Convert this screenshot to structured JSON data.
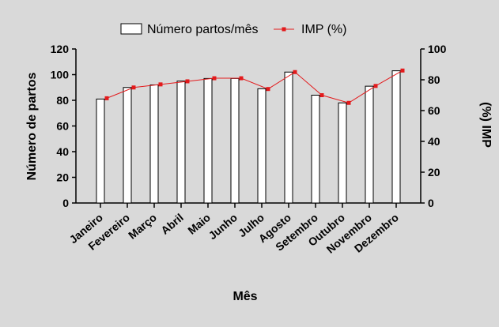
{
  "chart_data": {
    "type": "bar",
    "xlabel": "Mês",
    "categories": [
      "Janeiro",
      "Fevereiro",
      "Março",
      "Abril",
      "Maio",
      "Junho",
      "Julho",
      "Agosto",
      "Setembro",
      "Outubro",
      "Novembro",
      "Dezembro"
    ],
    "series": [
      {
        "name": "Número partos/mês",
        "type": "bar",
        "axis": "left",
        "color": "#ffffff",
        "values": [
          81,
          90,
          92,
          95,
          97,
          97,
          89,
          102,
          84,
          78,
          91,
          103
        ]
      },
      {
        "name": "IMP (%)",
        "type": "line",
        "axis": "right",
        "color": "#e31a1c",
        "values": [
          68,
          75,
          77,
          79,
          81,
          81,
          74,
          85,
          70,
          65,
          76,
          86
        ]
      }
    ],
    "y_left": {
      "label": "Número de partos",
      "ylim": [
        0,
        120
      ],
      "ticks": [
        "0",
        "20",
        "40",
        "60",
        "80",
        "100",
        "120"
      ]
    },
    "y_right": {
      "label": "(%) IMP",
      "ylim": [
        0,
        100
      ],
      "ticks": [
        "0",
        "20",
        "40",
        "60",
        "80",
        "100"
      ]
    },
    "legend_position": "top",
    "grid": false
  }
}
